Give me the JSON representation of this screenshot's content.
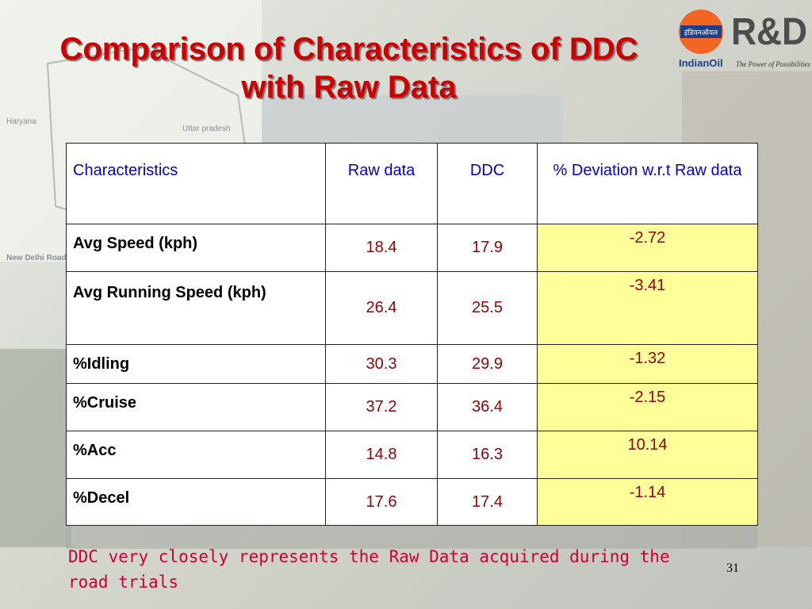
{
  "title": "Comparison of Characteristics of DDC with Raw Data",
  "logo": {
    "hindi": "इंडियनऑयल",
    "brand": "IndianOil",
    "unit": "R&D",
    "tagline": "The Power of Possibilities"
  },
  "background_labels": [
    "Haryana",
    "Uttar pradesh",
    "New Delhi Road Map"
  ],
  "table": {
    "header": [
      "Characteristics",
      "Raw data",
      "DDC",
      "% Deviation w.r.t Raw data"
    ],
    "rows": [
      [
        "Avg Speed (kph)",
        18.4,
        17.9,
        -2.72
      ],
      [
        "Avg Running Speed (kph)",
        26.4,
        25.5,
        -3.41
      ],
      [
        "%Idling",
        30.3,
        29.9,
        -1.32
      ],
      [
        "%Cruise",
        37.2,
        36.4,
        -2.15
      ],
      [
        "%Acc",
        14.8,
        16.3,
        10.14
      ],
      [
        "%Decel",
        17.6,
        17.4,
        -1.14
      ]
    ]
  },
  "footnote": "DDC very closely represents the Raw Data acquired during the road trials",
  "page_number": "31"
}
